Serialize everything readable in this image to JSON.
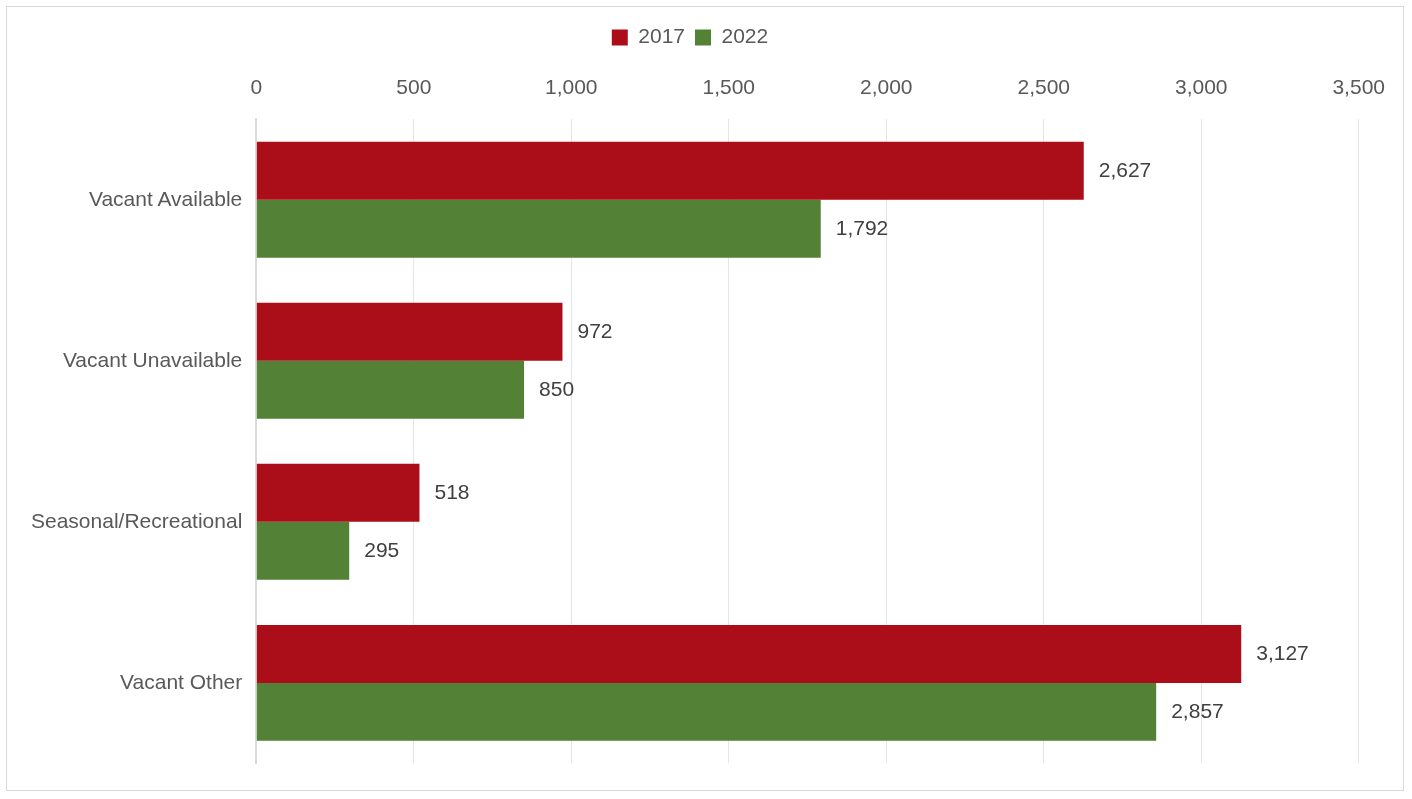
{
  "chart_data": {
    "type": "bar",
    "orientation": "horizontal",
    "categories": [
      "Vacant Available",
      "Vacant Unavailable",
      "Seasonal/Recreational",
      "Vacant Other"
    ],
    "series": [
      {
        "name": "2017",
        "color": "#ab0e18",
        "values": [
          2627,
          972,
          518,
          3127
        ],
        "value_labels": [
          "2,627",
          "972",
          "518",
          "3,127"
        ]
      },
      {
        "name": "2022",
        "color": "#538135",
        "values": [
          1792,
          850,
          295,
          2857
        ],
        "value_labels": [
          "1,792",
          "850",
          "295",
          "2,857"
        ]
      }
    ],
    "xlim": [
      0,
      3500
    ],
    "xticks": [
      0,
      500,
      {
        "value": 1000,
        "label": "1,000"
      },
      {
        "value": 1500,
        "label": "1,500"
      },
      {
        "value": 2000,
        "label": "2,000"
      },
      {
        "value": 2500,
        "label": "2,500"
      },
      {
        "value": 3000,
        "label": "3,000"
      },
      {
        "value": 3500,
        "label": "3,500"
      }
    ],
    "grid": "x",
    "legend": "top"
  }
}
